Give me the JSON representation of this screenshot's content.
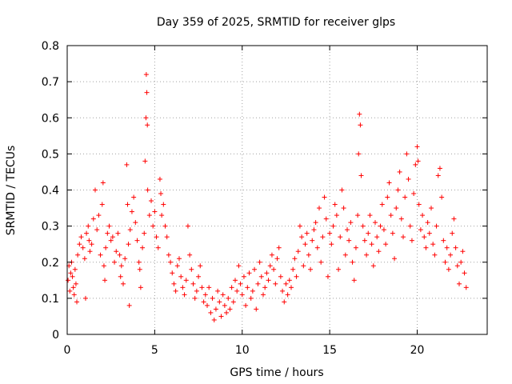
{
  "chart_data": {
    "type": "scatter",
    "title": "Day 359 of 2025, SRMTID for receiver glps",
    "xlabel": "GPS time / hours",
    "ylabel": "SRMTID / TECUs",
    "xlim": [
      0,
      24
    ],
    "ylim": [
      0,
      0.8
    ],
    "x_ticks": [
      0,
      5,
      10,
      15,
      20
    ],
    "y_ticks": [
      0,
      0.1,
      0.2,
      0.3,
      0.4,
      0.5,
      0.6,
      0.7,
      0.8
    ],
    "y_tick_labels": [
      "0",
      "0.1",
      "0.2",
      "0.3",
      "0.4",
      "0.5",
      "0.6",
      "0.7",
      "0.8"
    ],
    "grid": true,
    "marker": "+",
    "series_color": "#ff0000",
    "series": [
      {
        "name": "SRMTID",
        "points": [
          [
            0.05,
            0.15
          ],
          [
            0.1,
            0.19
          ],
          [
            0.15,
            0.12
          ],
          [
            0.2,
            0.17
          ],
          [
            0.25,
            0.2
          ],
          [
            0.3,
            0.16
          ],
          [
            0.35,
            0.13
          ],
          [
            0.4,
            0.11
          ],
          [
            0.45,
            0.18
          ],
          [
            0.5,
            0.14
          ],
          [
            0.55,
            0.09
          ],
          [
            0.6,
            0.22
          ],
          [
            0.7,
            0.25
          ],
          [
            0.8,
            0.27
          ],
          [
            0.9,
            0.24
          ],
          [
            1.0,
            0.21
          ],
          [
            1.05,
            0.1
          ],
          [
            1.1,
            0.28
          ],
          [
            1.2,
            0.3
          ],
          [
            1.25,
            0.26
          ],
          [
            1.3,
            0.23
          ],
          [
            1.4,
            0.25
          ],
          [
            1.5,
            0.32
          ],
          [
            1.6,
            0.4
          ],
          [
            1.7,
            0.29
          ],
          [
            1.8,
            0.33
          ],
          [
            1.9,
            0.22
          ],
          [
            2.0,
            0.36
          ],
          [
            2.05,
            0.42
          ],
          [
            2.1,
            0.19
          ],
          [
            2.15,
            0.15
          ],
          [
            2.2,
            0.24
          ],
          [
            2.3,
            0.28
          ],
          [
            2.4,
            0.3
          ],
          [
            2.5,
            0.26
          ],
          [
            2.6,
            0.27
          ],
          [
            2.7,
            0.2
          ],
          [
            2.8,
            0.23
          ],
          [
            2.9,
            0.28
          ],
          [
            3.0,
            0.22
          ],
          [
            3.05,
            0.16
          ],
          [
            3.1,
            0.19
          ],
          [
            3.2,
            0.14
          ],
          [
            3.3,
            0.21
          ],
          [
            3.4,
            0.47
          ],
          [
            3.45,
            0.36
          ],
          [
            3.5,
            0.25
          ],
          [
            3.55,
            0.08
          ],
          [
            3.6,
            0.29
          ],
          [
            3.7,
            0.34
          ],
          [
            3.8,
            0.38
          ],
          [
            3.9,
            0.31
          ],
          [
            4.0,
            0.26
          ],
          [
            4.1,
            0.2
          ],
          [
            4.15,
            0.18
          ],
          [
            4.2,
            0.13
          ],
          [
            4.3,
            0.24
          ],
          [
            4.4,
            0.28
          ],
          [
            4.45,
            0.48
          ],
          [
            4.5,
            0.6
          ],
          [
            4.52,
            0.72
          ],
          [
            4.55,
            0.67
          ],
          [
            4.58,
            0.58
          ],
          [
            4.6,
            0.4
          ],
          [
            4.7,
            0.33
          ],
          [
            4.8,
            0.37
          ],
          [
            4.9,
            0.3
          ],
          [
            5.0,
            0.34
          ],
          [
            5.1,
            0.27
          ],
          [
            5.2,
            0.24
          ],
          [
            5.3,
            0.43
          ],
          [
            5.35,
            0.39
          ],
          [
            5.4,
            0.33
          ],
          [
            5.5,
            0.36
          ],
          [
            5.6,
            0.3
          ],
          [
            5.7,
            0.27
          ],
          [
            5.8,
            0.22
          ],
          [
            5.9,
            0.2
          ],
          [
            6.0,
            0.17
          ],
          [
            6.1,
            0.14
          ],
          [
            6.2,
            0.12
          ],
          [
            6.3,
            0.19
          ],
          [
            6.4,
            0.21
          ],
          [
            6.5,
            0.16
          ],
          [
            6.6,
            0.13
          ],
          [
            6.7,
            0.11
          ],
          [
            6.8,
            0.15
          ],
          [
            6.9,
            0.3
          ],
          [
            7.0,
            0.22
          ],
          [
            7.1,
            0.18
          ],
          [
            7.2,
            0.14
          ],
          [
            7.3,
            0.1
          ],
          [
            7.4,
            0.12
          ],
          [
            7.5,
            0.16
          ],
          [
            7.6,
            0.19
          ],
          [
            7.7,
            0.13
          ],
          [
            7.8,
            0.09
          ],
          [
            7.9,
            0.11
          ],
          [
            8.0,
            0.08
          ],
          [
            8.1,
            0.13
          ],
          [
            8.2,
            0.06
          ],
          [
            8.3,
            0.1
          ],
          [
            8.4,
            0.04
          ],
          [
            8.5,
            0.07
          ],
          [
            8.6,
            0.12
          ],
          [
            8.7,
            0.09
          ],
          [
            8.8,
            0.05
          ],
          [
            8.9,
            0.11
          ],
          [
            9.0,
            0.08
          ],
          [
            9.1,
            0.06
          ],
          [
            9.2,
            0.1
          ],
          [
            9.3,
            0.07
          ],
          [
            9.4,
            0.13
          ],
          [
            9.5,
            0.09
          ],
          [
            9.6,
            0.15
          ],
          [
            9.7,
            0.12
          ],
          [
            9.8,
            0.19
          ],
          [
            9.9,
            0.14
          ],
          [
            10.0,
            0.11
          ],
          [
            10.1,
            0.16
          ],
          [
            10.2,
            0.08
          ],
          [
            10.3,
            0.13
          ],
          [
            10.4,
            0.17
          ],
          [
            10.5,
            0.1
          ],
          [
            10.6,
            0.12
          ],
          [
            10.7,
            0.18
          ],
          [
            10.8,
            0.07
          ],
          [
            10.9,
            0.14
          ],
          [
            11.0,
            0.2
          ],
          [
            11.1,
            0.16
          ],
          [
            11.2,
            0.11
          ],
          [
            11.3,
            0.13
          ],
          [
            11.4,
            0.17
          ],
          [
            11.5,
            0.15
          ],
          [
            11.6,
            0.19
          ],
          [
            11.7,
            0.22
          ],
          [
            11.8,
            0.18
          ],
          [
            11.9,
            0.14
          ],
          [
            12.0,
            0.21
          ],
          [
            12.1,
            0.24
          ],
          [
            12.2,
            0.16
          ],
          [
            12.3,
            0.12
          ],
          [
            12.4,
            0.09
          ],
          [
            12.5,
            0.14
          ],
          [
            12.6,
            0.11
          ],
          [
            12.7,
            0.15
          ],
          [
            12.8,
            0.13
          ],
          [
            12.9,
            0.18
          ],
          [
            13.0,
            0.21
          ],
          [
            13.1,
            0.16
          ],
          [
            13.2,
            0.23
          ],
          [
            13.3,
            0.3
          ],
          [
            13.4,
            0.27
          ],
          [
            13.5,
            0.19
          ],
          [
            13.6,
            0.25
          ],
          [
            13.7,
            0.28
          ],
          [
            13.8,
            0.22
          ],
          [
            13.9,
            0.18
          ],
          [
            14.0,
            0.26
          ],
          [
            14.1,
            0.29
          ],
          [
            14.2,
            0.31
          ],
          [
            14.3,
            0.24
          ],
          [
            14.4,
            0.35
          ],
          [
            14.5,
            0.2
          ],
          [
            14.6,
            0.27
          ],
          [
            14.7,
            0.38
          ],
          [
            14.8,
            0.32
          ],
          [
            14.9,
            0.16
          ],
          [
            15.0,
            0.28
          ],
          [
            15.1,
            0.25
          ],
          [
            15.2,
            0.3
          ],
          [
            15.3,
            0.36
          ],
          [
            15.4,
            0.33
          ],
          [
            15.5,
            0.18
          ],
          [
            15.6,
            0.27
          ],
          [
            15.7,
            0.4
          ],
          [
            15.8,
            0.35
          ],
          [
            15.9,
            0.22
          ],
          [
            16.0,
            0.29
          ],
          [
            16.1,
            0.26
          ],
          [
            16.2,
            0.31
          ],
          [
            16.3,
            0.2
          ],
          [
            16.4,
            0.15
          ],
          [
            16.5,
            0.24
          ],
          [
            16.6,
            0.33
          ],
          [
            16.65,
            0.5
          ],
          [
            16.7,
            0.61
          ],
          [
            16.75,
            0.58
          ],
          [
            16.8,
            0.44
          ],
          [
            16.9,
            0.3
          ],
          [
            17.0,
            0.26
          ],
          [
            17.1,
            0.22
          ],
          [
            17.2,
            0.28
          ],
          [
            17.3,
            0.33
          ],
          [
            17.4,
            0.25
          ],
          [
            17.5,
            0.19
          ],
          [
            17.6,
            0.31
          ],
          [
            17.7,
            0.27
          ],
          [
            17.8,
            0.23
          ],
          [
            17.9,
            0.3
          ],
          [
            18.0,
            0.36
          ],
          [
            18.1,
            0.29
          ],
          [
            18.2,
            0.25
          ],
          [
            18.3,
            0.38
          ],
          [
            18.4,
            0.42
          ],
          [
            18.5,
            0.33
          ],
          [
            18.6,
            0.28
          ],
          [
            18.7,
            0.21
          ],
          [
            18.8,
            0.35
          ],
          [
            18.9,
            0.4
          ],
          [
            19.0,
            0.45
          ],
          [
            19.1,
            0.32
          ],
          [
            19.2,
            0.27
          ],
          [
            19.3,
            0.38
          ],
          [
            19.4,
            0.5
          ],
          [
            19.5,
            0.43
          ],
          [
            19.6,
            0.3
          ],
          [
            19.7,
            0.26
          ],
          [
            19.8,
            0.39
          ],
          [
            19.9,
            0.47
          ],
          [
            20.0,
            0.52
          ],
          [
            20.05,
            0.48
          ],
          [
            20.1,
            0.36
          ],
          [
            20.2,
            0.29
          ],
          [
            20.3,
            0.33
          ],
          [
            20.4,
            0.27
          ],
          [
            20.5,
            0.24
          ],
          [
            20.6,
            0.31
          ],
          [
            20.7,
            0.28
          ],
          [
            20.8,
            0.35
          ],
          [
            20.9,
            0.25
          ],
          [
            21.0,
            0.22
          ],
          [
            21.1,
            0.3
          ],
          [
            21.2,
            0.44
          ],
          [
            21.3,
            0.46
          ],
          [
            21.4,
            0.38
          ],
          [
            21.5,
            0.26
          ],
          [
            21.6,
            0.2
          ],
          [
            21.7,
            0.24
          ],
          [
            21.8,
            0.18
          ],
          [
            21.9,
            0.22
          ],
          [
            22.0,
            0.28
          ],
          [
            22.1,
            0.32
          ],
          [
            22.2,
            0.24
          ],
          [
            22.3,
            0.19
          ],
          [
            22.4,
            0.14
          ],
          [
            22.5,
            0.2
          ],
          [
            22.6,
            0.23
          ],
          [
            22.7,
            0.17
          ],
          [
            22.8,
            0.13
          ]
        ]
      }
    ]
  }
}
